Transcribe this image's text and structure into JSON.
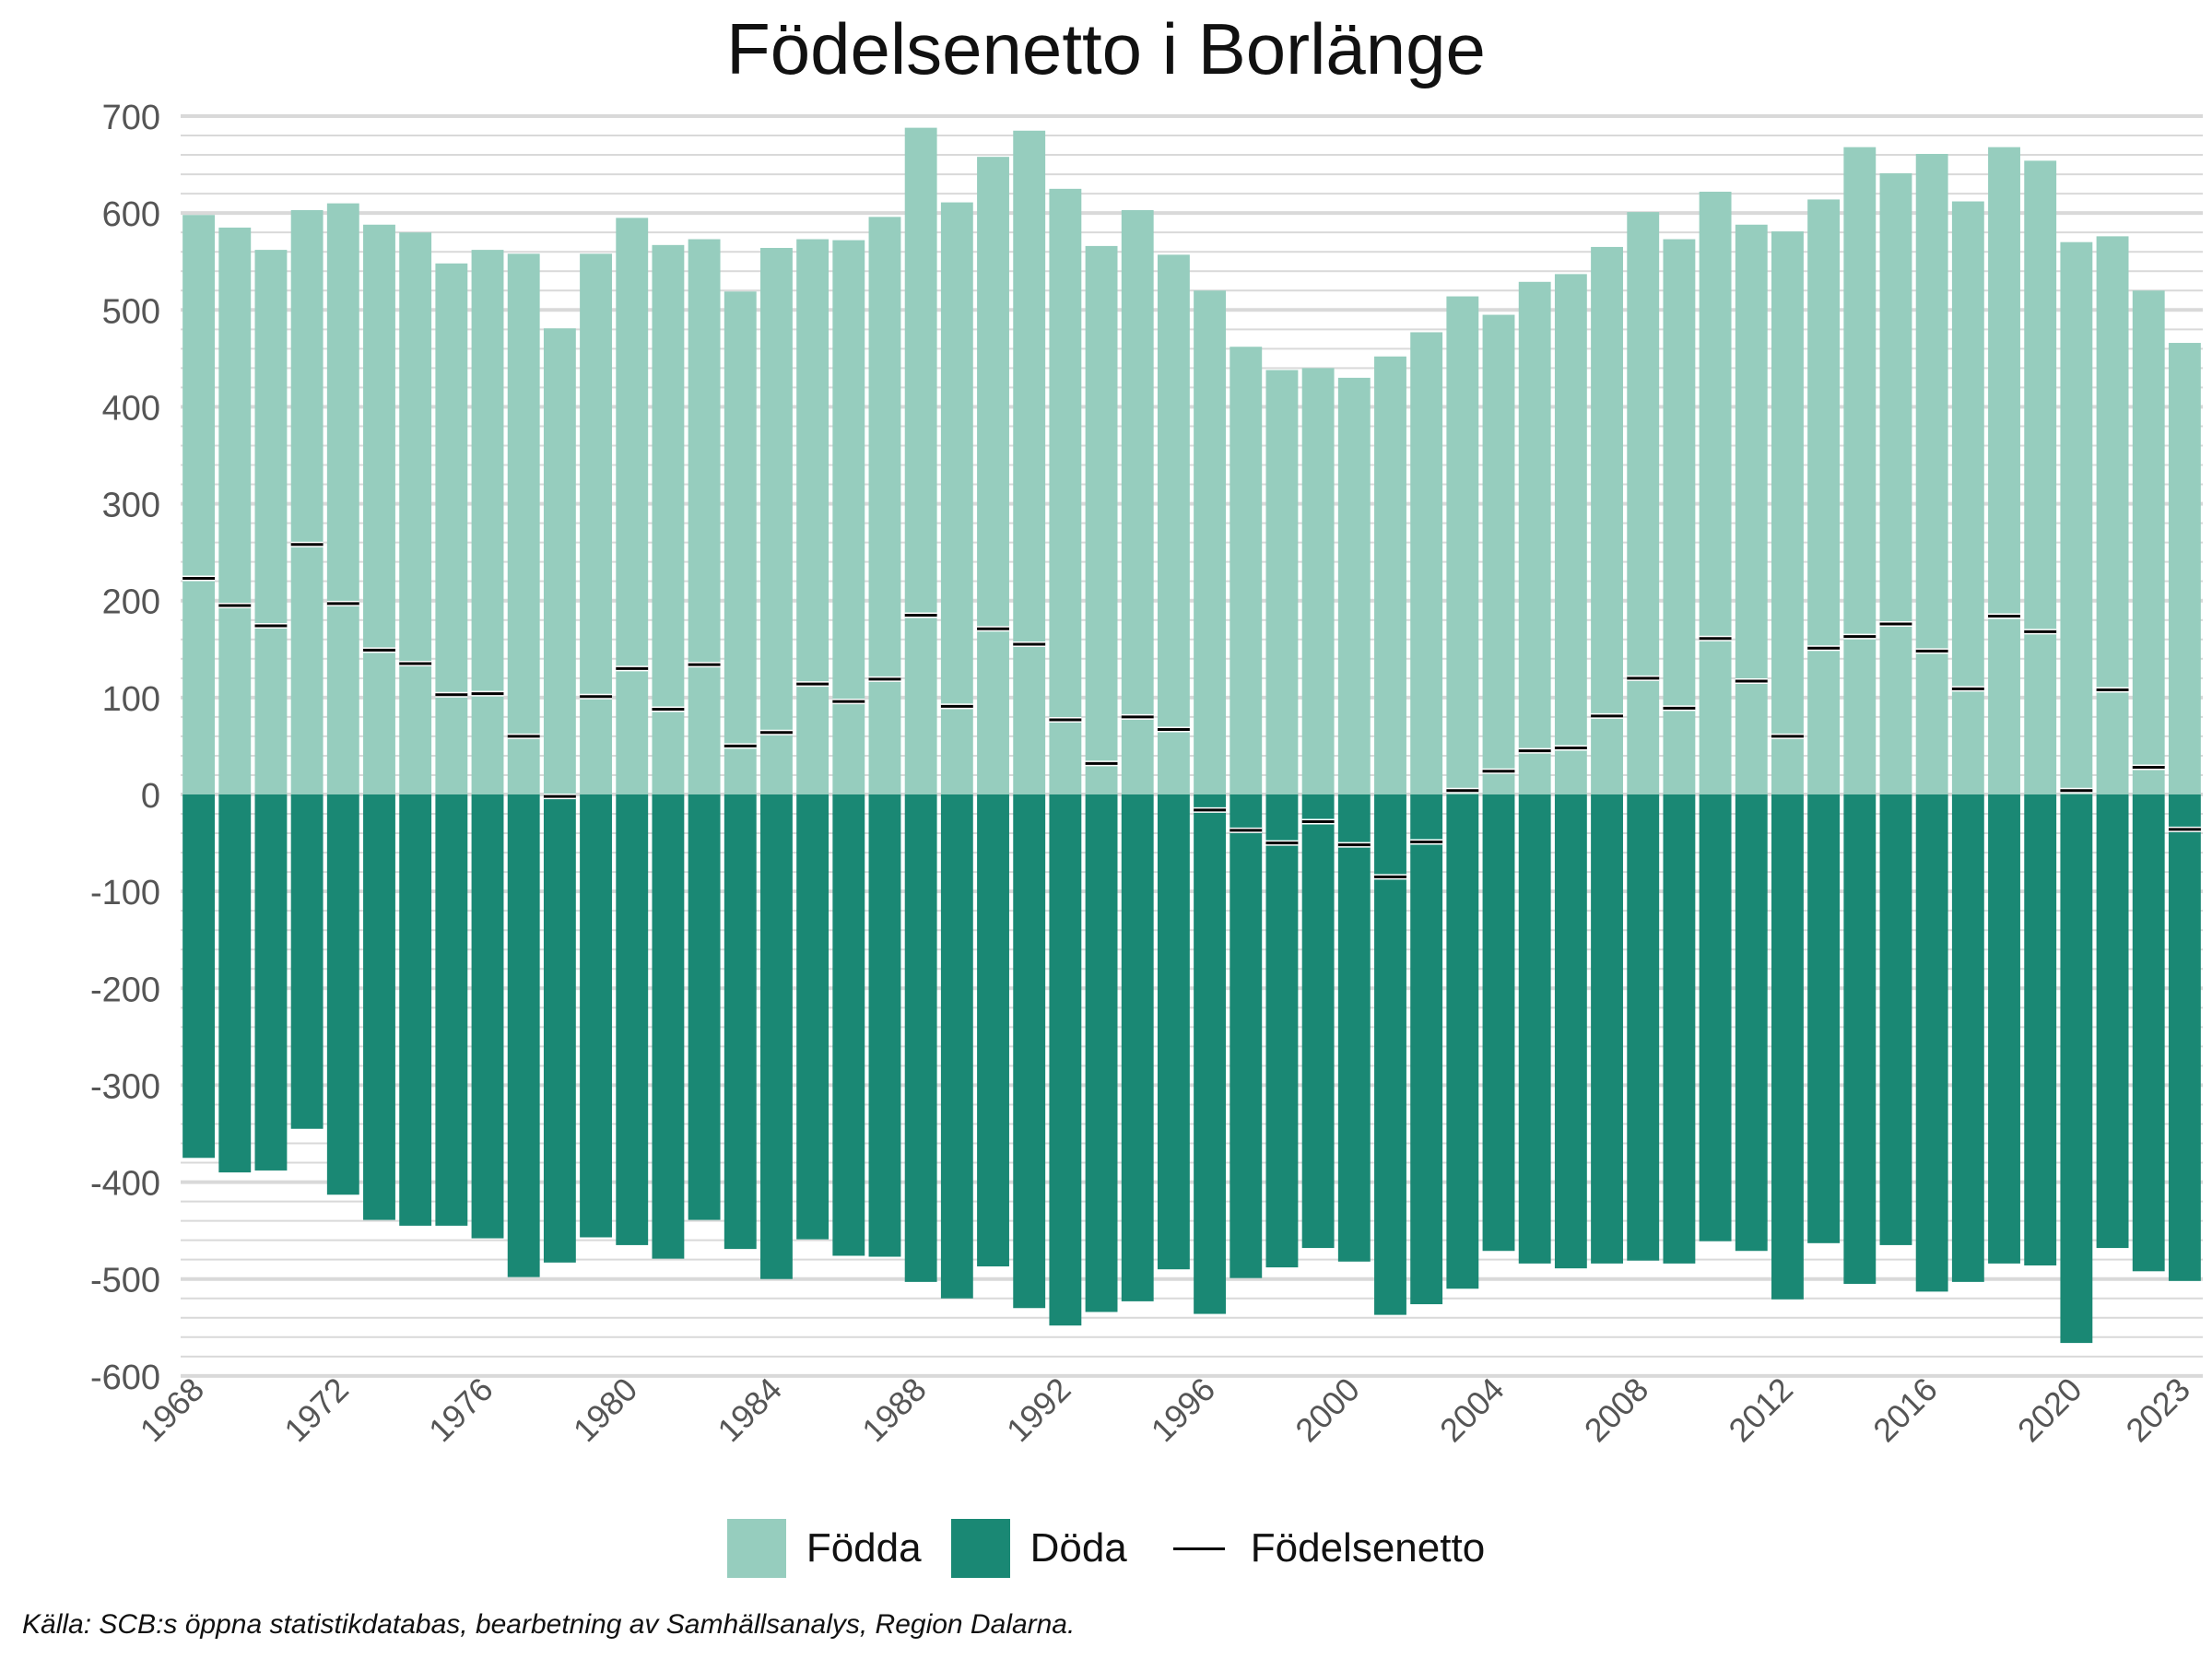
{
  "chart_data": {
    "type": "bar",
    "title": "Födelsenetto i Borlänge",
    "xlabel": "",
    "ylabel": "",
    "ylim": [
      -600,
      700
    ],
    "yticks": [
      700,
      600,
      500,
      400,
      300,
      200,
      100,
      0,
      -100,
      -200,
      -300,
      -400,
      -500,
      -600
    ],
    "xticks": [
      1968,
      1972,
      1976,
      1980,
      1984,
      1988,
      1992,
      1996,
      2000,
      2004,
      2008,
      2012,
      2016,
      2020,
      2023
    ],
    "grid": true,
    "legend_position": "bottom",
    "categories": [
      1968,
      1969,
      1970,
      1971,
      1972,
      1973,
      1974,
      1975,
      1976,
      1977,
      1978,
      1979,
      1980,
      1981,
      1982,
      1983,
      1984,
      1985,
      1986,
      1987,
      1988,
      1989,
      1990,
      1991,
      1992,
      1993,
      1994,
      1995,
      1996,
      1997,
      1998,
      1999,
      2000,
      2001,
      2002,
      2003,
      2004,
      2005,
      2006,
      2007,
      2008,
      2009,
      2010,
      2011,
      2012,
      2013,
      2014,
      2015,
      2016,
      2017,
      2018,
      2019,
      2020,
      2021,
      2022,
      2023
    ],
    "series": [
      {
        "name": "Födda",
        "color": "#96cdbe",
        "values": [
          598,
          585,
          562,
          603,
          610,
          588,
          580,
          548,
          562,
          558,
          481,
          558,
          595,
          567,
          573,
          519,
          564,
          573,
          572,
          596,
          688,
          611,
          658,
          685,
          625,
          566,
          603,
          557,
          520,
          462,
          438,
          440,
          430,
          452,
          477,
          514,
          495,
          529,
          537,
          565,
          601,
          573,
          622,
          588,
          581,
          614,
          668,
          641,
          661,
          612,
          668,
          654,
          570,
          576,
          520,
          466
        ]
      },
      {
        "name": "Döda",
        "color": "#1a8874",
        "values": [
          -375,
          -390,
          -388,
          -345,
          -413,
          -439,
          -445,
          -445,
          -458,
          -498,
          -483,
          -457,
          -465,
          -479,
          -439,
          -469,
          -500,
          -459,
          -476,
          -477,
          -503,
          -520,
          -487,
          -530,
          -548,
          -534,
          -523,
          -490,
          -536,
          -499,
          -488,
          -468,
          -482,
          -537,
          -526,
          -510,
          -471,
          -484,
          -489,
          -484,
          -481,
          -484,
          -461,
          -471,
          -521,
          -463,
          -505,
          -465,
          -513,
          -503,
          -484,
          -486,
          -566,
          -468,
          -492,
          -502
        ]
      },
      {
        "name": "Födelsenetto",
        "color": "#000000",
        "values": [
          223,
          195,
          174,
          258,
          197,
          149,
          135,
          103,
          104,
          60,
          -2,
          101,
          130,
          88,
          134,
          50,
          64,
          114,
          96,
          119,
          185,
          91,
          171,
          155,
          77,
          32,
          80,
          67,
          -16,
          -37,
          -50,
          -28,
          -52,
          -85,
          -49,
          4,
          24,
          45,
          48,
          81,
          120,
          89,
          161,
          117,
          60,
          151,
          163,
          176,
          148,
          109,
          184,
          168,
          4,
          108,
          28,
          -36
        ]
      }
    ]
  },
  "legend": {
    "items": [
      {
        "label": "Födda"
      },
      {
        "label": "Döda"
      },
      {
        "label": "Födelsenetto"
      }
    ]
  },
  "source": "Källa: SCB:s öppna statistikdatabas, bearbetning av Samhällsanalys, Region Dalarna."
}
